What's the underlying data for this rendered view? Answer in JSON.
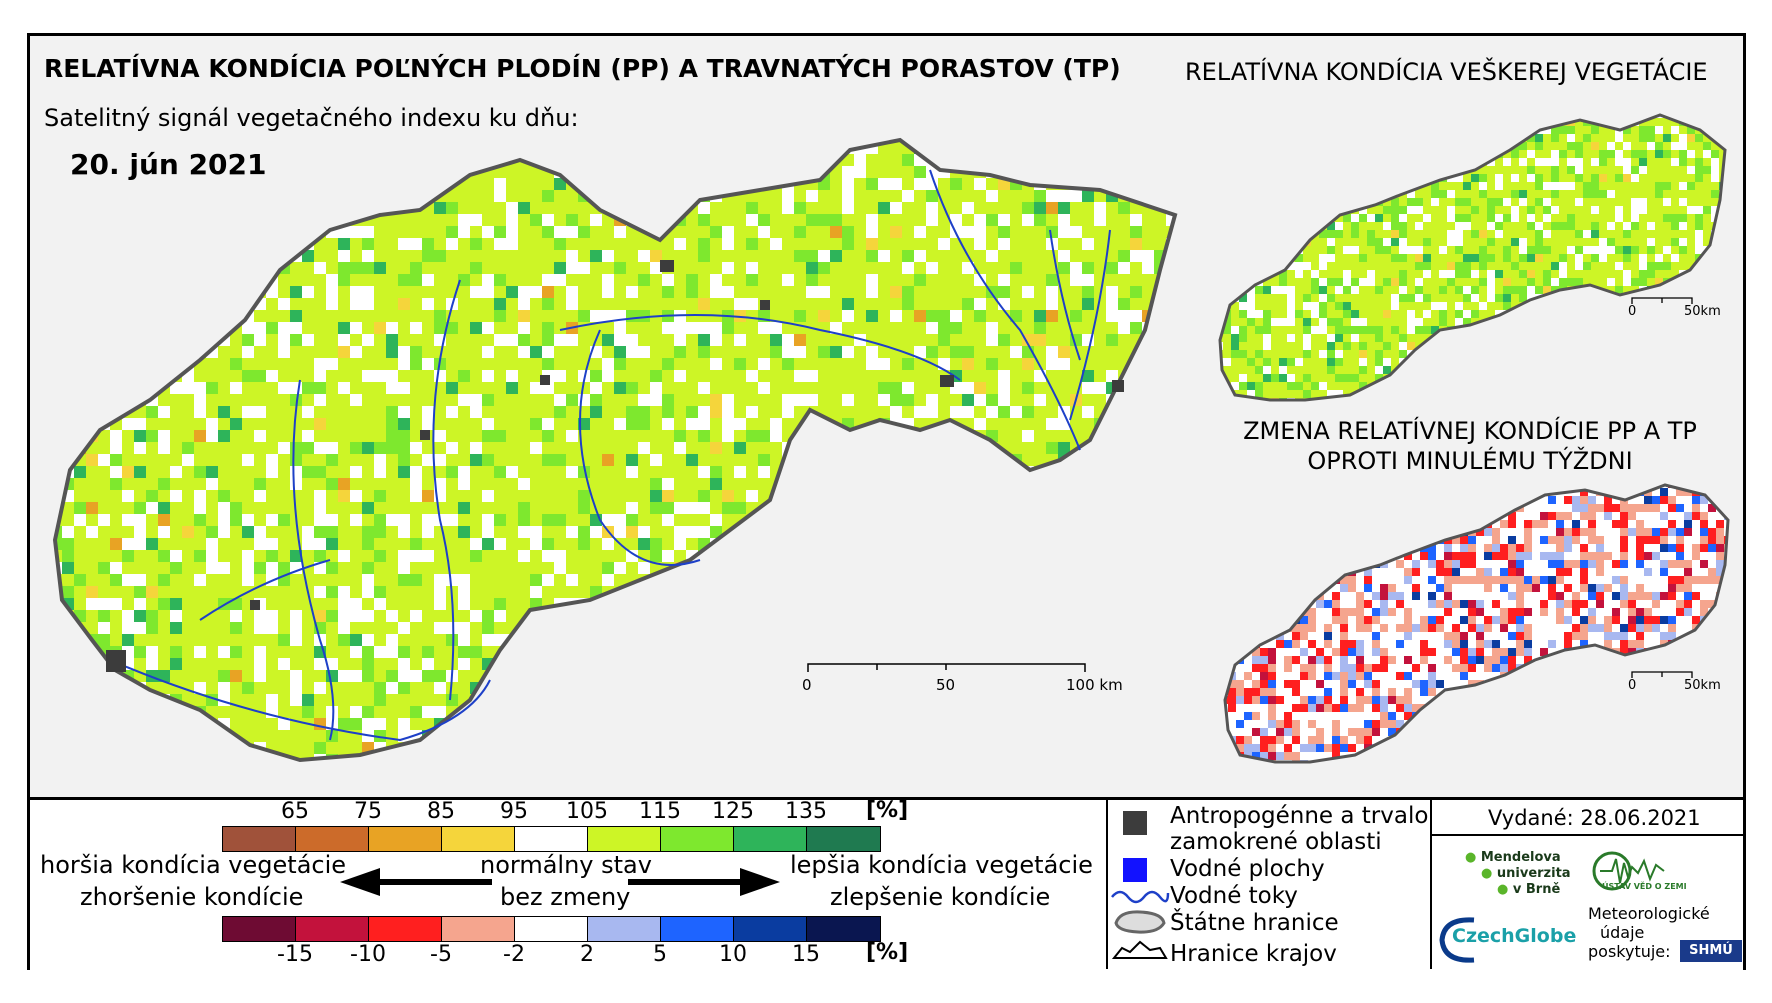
{
  "title": "RELATÍVNA KONDÍCIA POĽNÝCH PLODÍN (PP) A TRAVNATÝCH PORASTOV (TP)",
  "subtitle": "Satelitný signál vegetačného indexu ku dňu:",
  "date": "20. jún 2021",
  "right_top_title": "RELATÍVNA KONDÍCIA VEŠKEREJ VEGETÁCIE",
  "right_bottom_title": [
    "ZMENA RELATÍVNEJ KONDÍCIE PP A TP",
    "OPROTI MINULÉMU TÝŽDNI"
  ],
  "main_scale": {
    "ticks": [
      "0",
      "50",
      "100 km"
    ]
  },
  "small_scale": {
    "ticks": [
      "0",
      "50km"
    ]
  },
  "condition_legend": {
    "unit": "[%]",
    "ticks": [
      "65",
      "75",
      "85",
      "95",
      "105",
      "115",
      "125",
      "135"
    ],
    "colors": [
      "#a0523a",
      "#cc6b2a",
      "#e8a324",
      "#f5d53b",
      "#ffffff",
      "#cdf526",
      "#7ee82e",
      "#2eb45a",
      "#1f7a50"
    ]
  },
  "change_legend": {
    "unit": "[%]",
    "ticks": [
      "-15",
      "-10",
      "-5",
      "-2",
      "2",
      "5",
      "10",
      "15"
    ],
    "colors": [
      "#6e0b33",
      "#c3123c",
      "#ff1f1f",
      "#f5a58e",
      "#ffffff",
      "#a8b8f0",
      "#1e64ff",
      "#0a3ca0",
      "#0a1650"
    ]
  },
  "left_labels": [
    "horšia kondícia vegetácie",
    "zhoršenie kondície"
  ],
  "center_labels": [
    "normálny stav",
    "bez zmeny"
  ],
  "right_labels": [
    "lepšia kondícia vegetácie",
    "zlepšenie kondície"
  ],
  "map_legend": {
    "anthro": [
      "Antropogénne a trvalo",
      "zamokrené oblasti"
    ],
    "water_areas": "Vodné plochy",
    "rivers": "Vodné toky",
    "border": "Štátne hranice",
    "regions": "Hranice krajov"
  },
  "issued": "Vydané: 28.06.2021",
  "logos": {
    "mendel": [
      "Mendelova",
      "univerzita",
      "v Brně"
    ],
    "ustav": "ÚSTAV VĚD O ZEMI",
    "czechglobe": "CzechGlobe",
    "meteo": [
      "Meteorologické",
      "údaje",
      "poskytuje:"
    ],
    "shmu": "SHMÚ"
  },
  "colors": {
    "lime": "#cdf526",
    "green": "#7ee82e",
    "darkgreen": "#2eb45a",
    "red": "#ff1f1f",
    "blue": "#1e64ff",
    "river": "#1e40c8",
    "urban": "#3c3c3c"
  }
}
